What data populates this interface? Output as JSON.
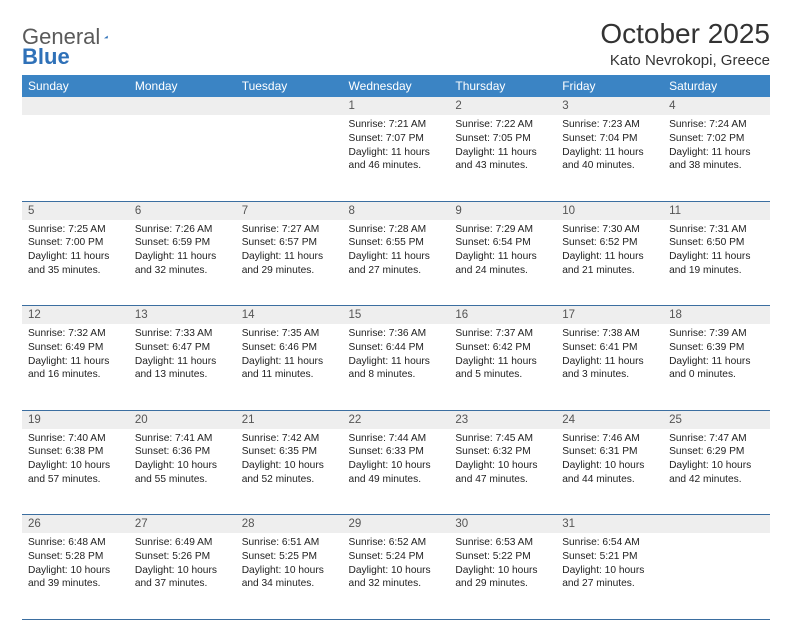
{
  "header": {
    "logo_general": "General",
    "logo_blue": "Blue",
    "month_title": "October 2025",
    "location": "Kato Nevrokopi, Greece"
  },
  "style": {
    "header_bg": "#3b84c4",
    "header_fg": "#ffffff",
    "daynum_bg": "#eeeeee",
    "row_border": "#3b6ea0",
    "logo_blue_color": "#2f71b8",
    "body_font_size": 10.2,
    "title_font_size": 28
  },
  "day_names": [
    "Sunday",
    "Monday",
    "Tuesday",
    "Wednesday",
    "Thursday",
    "Friday",
    "Saturday"
  ],
  "weeks": [
    [
      null,
      null,
      null,
      {
        "n": "1",
        "sunrise": "7:21 AM",
        "sunset": "7:07 PM",
        "daylight": "11 hours and 46 minutes."
      },
      {
        "n": "2",
        "sunrise": "7:22 AM",
        "sunset": "7:05 PM",
        "daylight": "11 hours and 43 minutes."
      },
      {
        "n": "3",
        "sunrise": "7:23 AM",
        "sunset": "7:04 PM",
        "daylight": "11 hours and 40 minutes."
      },
      {
        "n": "4",
        "sunrise": "7:24 AM",
        "sunset": "7:02 PM",
        "daylight": "11 hours and 38 minutes."
      }
    ],
    [
      {
        "n": "5",
        "sunrise": "7:25 AM",
        "sunset": "7:00 PM",
        "daylight": "11 hours and 35 minutes."
      },
      {
        "n": "6",
        "sunrise": "7:26 AM",
        "sunset": "6:59 PM",
        "daylight": "11 hours and 32 minutes."
      },
      {
        "n": "7",
        "sunrise": "7:27 AM",
        "sunset": "6:57 PM",
        "daylight": "11 hours and 29 minutes."
      },
      {
        "n": "8",
        "sunrise": "7:28 AM",
        "sunset": "6:55 PM",
        "daylight": "11 hours and 27 minutes."
      },
      {
        "n": "9",
        "sunrise": "7:29 AM",
        "sunset": "6:54 PM",
        "daylight": "11 hours and 24 minutes."
      },
      {
        "n": "10",
        "sunrise": "7:30 AM",
        "sunset": "6:52 PM",
        "daylight": "11 hours and 21 minutes."
      },
      {
        "n": "11",
        "sunrise": "7:31 AM",
        "sunset": "6:50 PM",
        "daylight": "11 hours and 19 minutes."
      }
    ],
    [
      {
        "n": "12",
        "sunrise": "7:32 AM",
        "sunset": "6:49 PM",
        "daylight": "11 hours and 16 minutes."
      },
      {
        "n": "13",
        "sunrise": "7:33 AM",
        "sunset": "6:47 PM",
        "daylight": "11 hours and 13 minutes."
      },
      {
        "n": "14",
        "sunrise": "7:35 AM",
        "sunset": "6:46 PM",
        "daylight": "11 hours and 11 minutes."
      },
      {
        "n": "15",
        "sunrise": "7:36 AM",
        "sunset": "6:44 PM",
        "daylight": "11 hours and 8 minutes."
      },
      {
        "n": "16",
        "sunrise": "7:37 AM",
        "sunset": "6:42 PM",
        "daylight": "11 hours and 5 minutes."
      },
      {
        "n": "17",
        "sunrise": "7:38 AM",
        "sunset": "6:41 PM",
        "daylight": "11 hours and 3 minutes."
      },
      {
        "n": "18",
        "sunrise": "7:39 AM",
        "sunset": "6:39 PM",
        "daylight": "11 hours and 0 minutes."
      }
    ],
    [
      {
        "n": "19",
        "sunrise": "7:40 AM",
        "sunset": "6:38 PM",
        "daylight": "10 hours and 57 minutes."
      },
      {
        "n": "20",
        "sunrise": "7:41 AM",
        "sunset": "6:36 PM",
        "daylight": "10 hours and 55 minutes."
      },
      {
        "n": "21",
        "sunrise": "7:42 AM",
        "sunset": "6:35 PM",
        "daylight": "10 hours and 52 minutes."
      },
      {
        "n": "22",
        "sunrise": "7:44 AM",
        "sunset": "6:33 PM",
        "daylight": "10 hours and 49 minutes."
      },
      {
        "n": "23",
        "sunrise": "7:45 AM",
        "sunset": "6:32 PM",
        "daylight": "10 hours and 47 minutes."
      },
      {
        "n": "24",
        "sunrise": "7:46 AM",
        "sunset": "6:31 PM",
        "daylight": "10 hours and 44 minutes."
      },
      {
        "n": "25",
        "sunrise": "7:47 AM",
        "sunset": "6:29 PM",
        "daylight": "10 hours and 42 minutes."
      }
    ],
    [
      {
        "n": "26",
        "sunrise": "6:48 AM",
        "sunset": "5:28 PM",
        "daylight": "10 hours and 39 minutes."
      },
      {
        "n": "27",
        "sunrise": "6:49 AM",
        "sunset": "5:26 PM",
        "daylight": "10 hours and 37 minutes."
      },
      {
        "n": "28",
        "sunrise": "6:51 AM",
        "sunset": "5:25 PM",
        "daylight": "10 hours and 34 minutes."
      },
      {
        "n": "29",
        "sunrise": "6:52 AM",
        "sunset": "5:24 PM",
        "daylight": "10 hours and 32 minutes."
      },
      {
        "n": "30",
        "sunrise": "6:53 AM",
        "sunset": "5:22 PM",
        "daylight": "10 hours and 29 minutes."
      },
      {
        "n": "31",
        "sunrise": "6:54 AM",
        "sunset": "5:21 PM",
        "daylight": "10 hours and 27 minutes."
      },
      null
    ]
  ],
  "labels": {
    "sunrise": "Sunrise:",
    "sunset": "Sunset:",
    "daylight": "Daylight:"
  }
}
